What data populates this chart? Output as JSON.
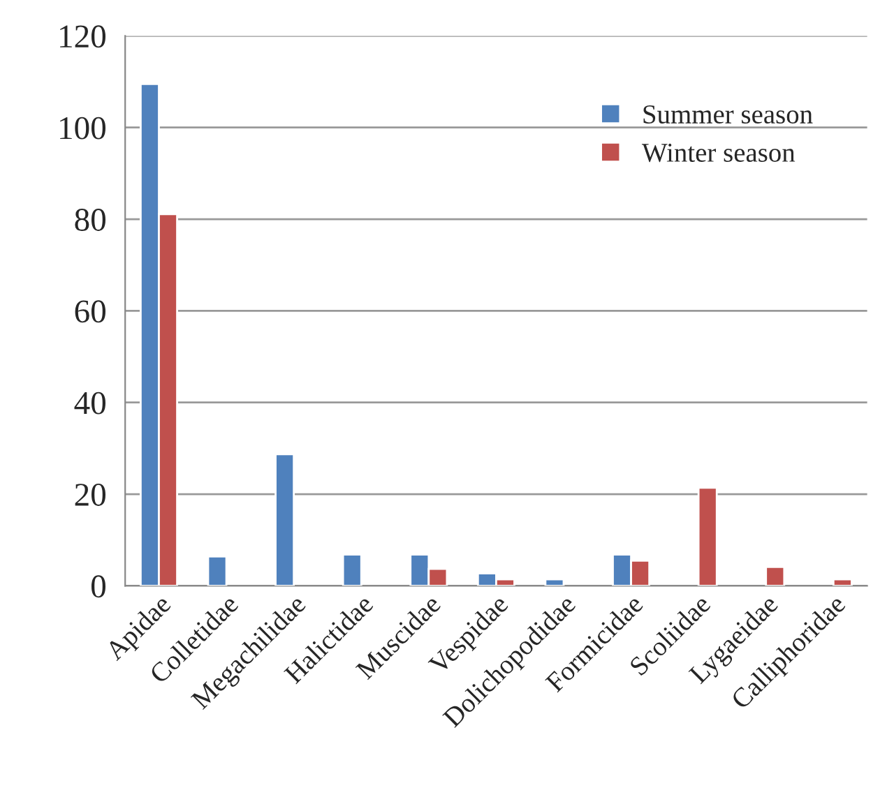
{
  "chart_data": {
    "type": "bar",
    "categories": [
      "Apidae",
      "Colletidae",
      "Megachilidae",
      "Halictidae",
      "Muscidae",
      "Vespidae",
      "Dolichopodidae",
      "Formicidae",
      "Scoliidae",
      "Lygaeidae",
      "Calliphoridae"
    ],
    "series": [
      {
        "name": "Summer season",
        "color": "#4f81bd",
        "values": [
          109.5,
          6.4,
          28.7,
          6.8,
          6.8,
          2.7,
          1.4,
          6.8,
          null,
          null,
          null
        ]
      },
      {
        "name": "Winter season",
        "color": "#c0504d",
        "values": [
          81.1,
          null,
          null,
          null,
          3.7,
          1.4,
          null,
          5.5,
          21.4,
          4.1,
          1.4
        ]
      }
    ],
    "ylim": [
      0,
      120
    ],
    "yticks": [
      0,
      20,
      40,
      60,
      80,
      100,
      120
    ],
    "grid": "y",
    "legend": "top right"
  }
}
